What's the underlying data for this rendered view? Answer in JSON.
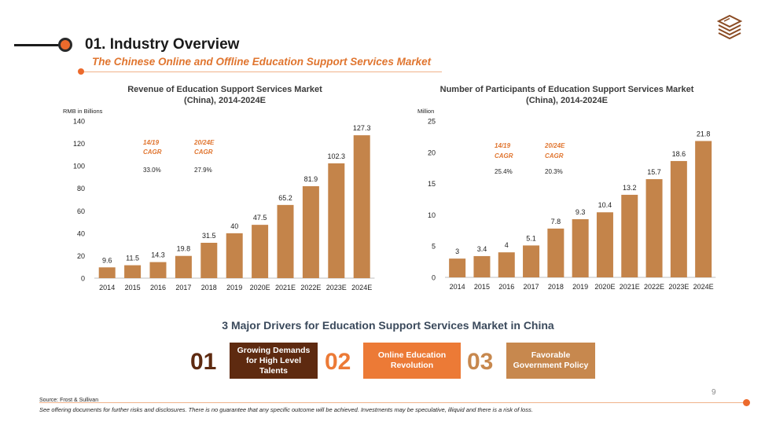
{
  "header": {
    "title": "01. Industry Overview",
    "subtitle": "The Chinese Online and Offline Education Support Services Market"
  },
  "logo_icon": "stacked-layers-logo-icon",
  "chart_data": [
    {
      "type": "bar",
      "title": "Revenue of Education Support Services Market",
      "subtitle": "(China), 2014-2024E",
      "ylabel": "RMB in Billions",
      "ylim": [
        0,
        140
      ],
      "yticks": [
        "0",
        "20",
        "40",
        "60",
        "80",
        "100",
        "120",
        "140"
      ],
      "categories": [
        "2014",
        "2015",
        "2016",
        "2017",
        "2018",
        "2019",
        "2020E",
        "2021E",
        "2022E",
        "2023E",
        "2024E"
      ],
      "values": [
        9.6,
        11.5,
        14.3,
        19.8,
        31.5,
        40,
        47.5,
        65.2,
        81.9,
        102.3,
        127.3
      ],
      "labels": [
        "9.6",
        "11.5",
        "14.3",
        "19.8",
        "31.5",
        "40",
        "47.5",
        "65.2",
        "81.9",
        "102.3",
        "127.3"
      ],
      "cagr": [
        {
          "period": "14/19",
          "label": "CAGR",
          "value": "33.0%"
        },
        {
          "period": "20/24E",
          "label": "CAGR",
          "value": "27.9%"
        }
      ],
      "bar_color": "#c4844a"
    },
    {
      "type": "bar",
      "title": "Number of Participants of Education Support Services Market",
      "subtitle": "(China), 2014-2024E",
      "ylabel": "Million",
      "ylim": [
        0,
        25
      ],
      "yticks": [
        "0",
        "5",
        "10",
        "15",
        "20",
        "25"
      ],
      "categories": [
        "2014",
        "2015",
        "2016",
        "2017",
        "2018",
        "2019",
        "2020E",
        "2021E",
        "2022E",
        "2023E",
        "2024E"
      ],
      "values": [
        3,
        3.4,
        4,
        5.1,
        7.8,
        9.3,
        10.4,
        13.2,
        15.7,
        18.6,
        21.8
      ],
      "labels": [
        "3",
        "3.4",
        "4",
        "5.1",
        "7.8",
        "9.3",
        "10.4",
        "13.2",
        "15.7",
        "18.6",
        "21.8"
      ],
      "cagr": [
        {
          "period": "14/19",
          "label": "CAGR",
          "value": "25.4%"
        },
        {
          "period": "20/24E",
          "label": "CAGR",
          "value": "20.3%"
        }
      ],
      "bar_color": "#c4844a"
    }
  ],
  "drivers": {
    "title": "3 Major Drivers for Education Support Services Market in China",
    "items": [
      {
        "number": "01",
        "label": "Growing Demands for High Level Talents",
        "color": "#5e2a10"
      },
      {
        "number": "02",
        "label": "Online Education Revolution",
        "color": "#ec7a36"
      },
      {
        "number": "03",
        "label": "Favorable Government Policy",
        "color": "#c7884e"
      }
    ]
  },
  "footer": {
    "page_number": "9",
    "source": "Source: Frost & Sullivan",
    "disclaimer": "See offering documents for further risks and disclosures. There is no guarantee that any specific outcome will be achieved. Investments may be speculative, illiquid and there is a risk of loss."
  },
  "colors": {
    "accent": "#ec6a2c",
    "subtitle": "#e0752f",
    "cagr_label": "#e0752f",
    "bar": "#c4844a"
  }
}
